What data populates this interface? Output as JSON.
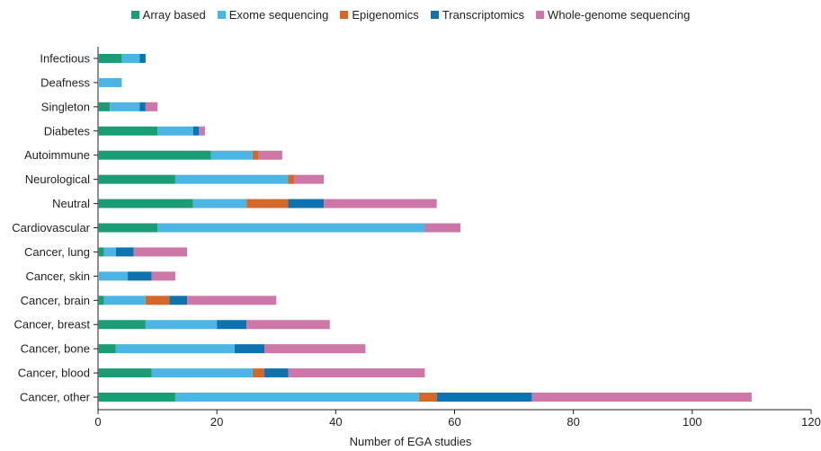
{
  "chart_data": {
    "type": "bar",
    "orientation": "horizontal",
    "stacked": true,
    "title": "",
    "xlabel": "Number of EGA studies",
    "ylabel": "",
    "xlim": [
      0,
      120
    ],
    "xticks": [
      0,
      20,
      40,
      60,
      80,
      100,
      120
    ],
    "grid": false,
    "legend_position": "top",
    "categories": [
      "Infectious",
      "Deafness",
      "Singleton",
      "Diabetes",
      "Autoimmune",
      "Neurological",
      "Neutral",
      "Cardiovascular",
      "Cancer, lung",
      "Cancer, skin",
      "Cancer, brain",
      "Cancer, breast",
      "Cancer, bone",
      "Cancer, blood",
      "Cancer, other"
    ],
    "series": [
      {
        "name": "Array based",
        "color": "#1a9c74",
        "values": [
          4,
          0,
          2,
          10,
          19,
          13,
          16,
          10,
          1,
          0,
          1,
          8,
          3,
          9,
          13
        ]
      },
      {
        "name": "Exome sequencing",
        "color": "#4cb5e3",
        "values": [
          3,
          4,
          5,
          6,
          7,
          19,
          9,
          45,
          2,
          5,
          7,
          12,
          20,
          17,
          41
        ]
      },
      {
        "name": "Epigenomics",
        "color": "#d4672a",
        "values": [
          0,
          0,
          0,
          0,
          1,
          1,
          7,
          0,
          0,
          0,
          4,
          0,
          0,
          2,
          3
        ]
      },
      {
        "name": "Transcriptomics",
        "color": "#0e72b0",
        "values": [
          1,
          0,
          1,
          1,
          0,
          0,
          6,
          0,
          3,
          4,
          3,
          5,
          5,
          4,
          16
        ]
      },
      {
        "name": "Whole-genome sequencing",
        "color": "#cc77a8",
        "values": [
          0,
          0,
          2,
          1,
          4,
          5,
          19,
          6,
          9,
          4,
          15,
          14,
          17,
          23,
          37
        ]
      }
    ]
  }
}
